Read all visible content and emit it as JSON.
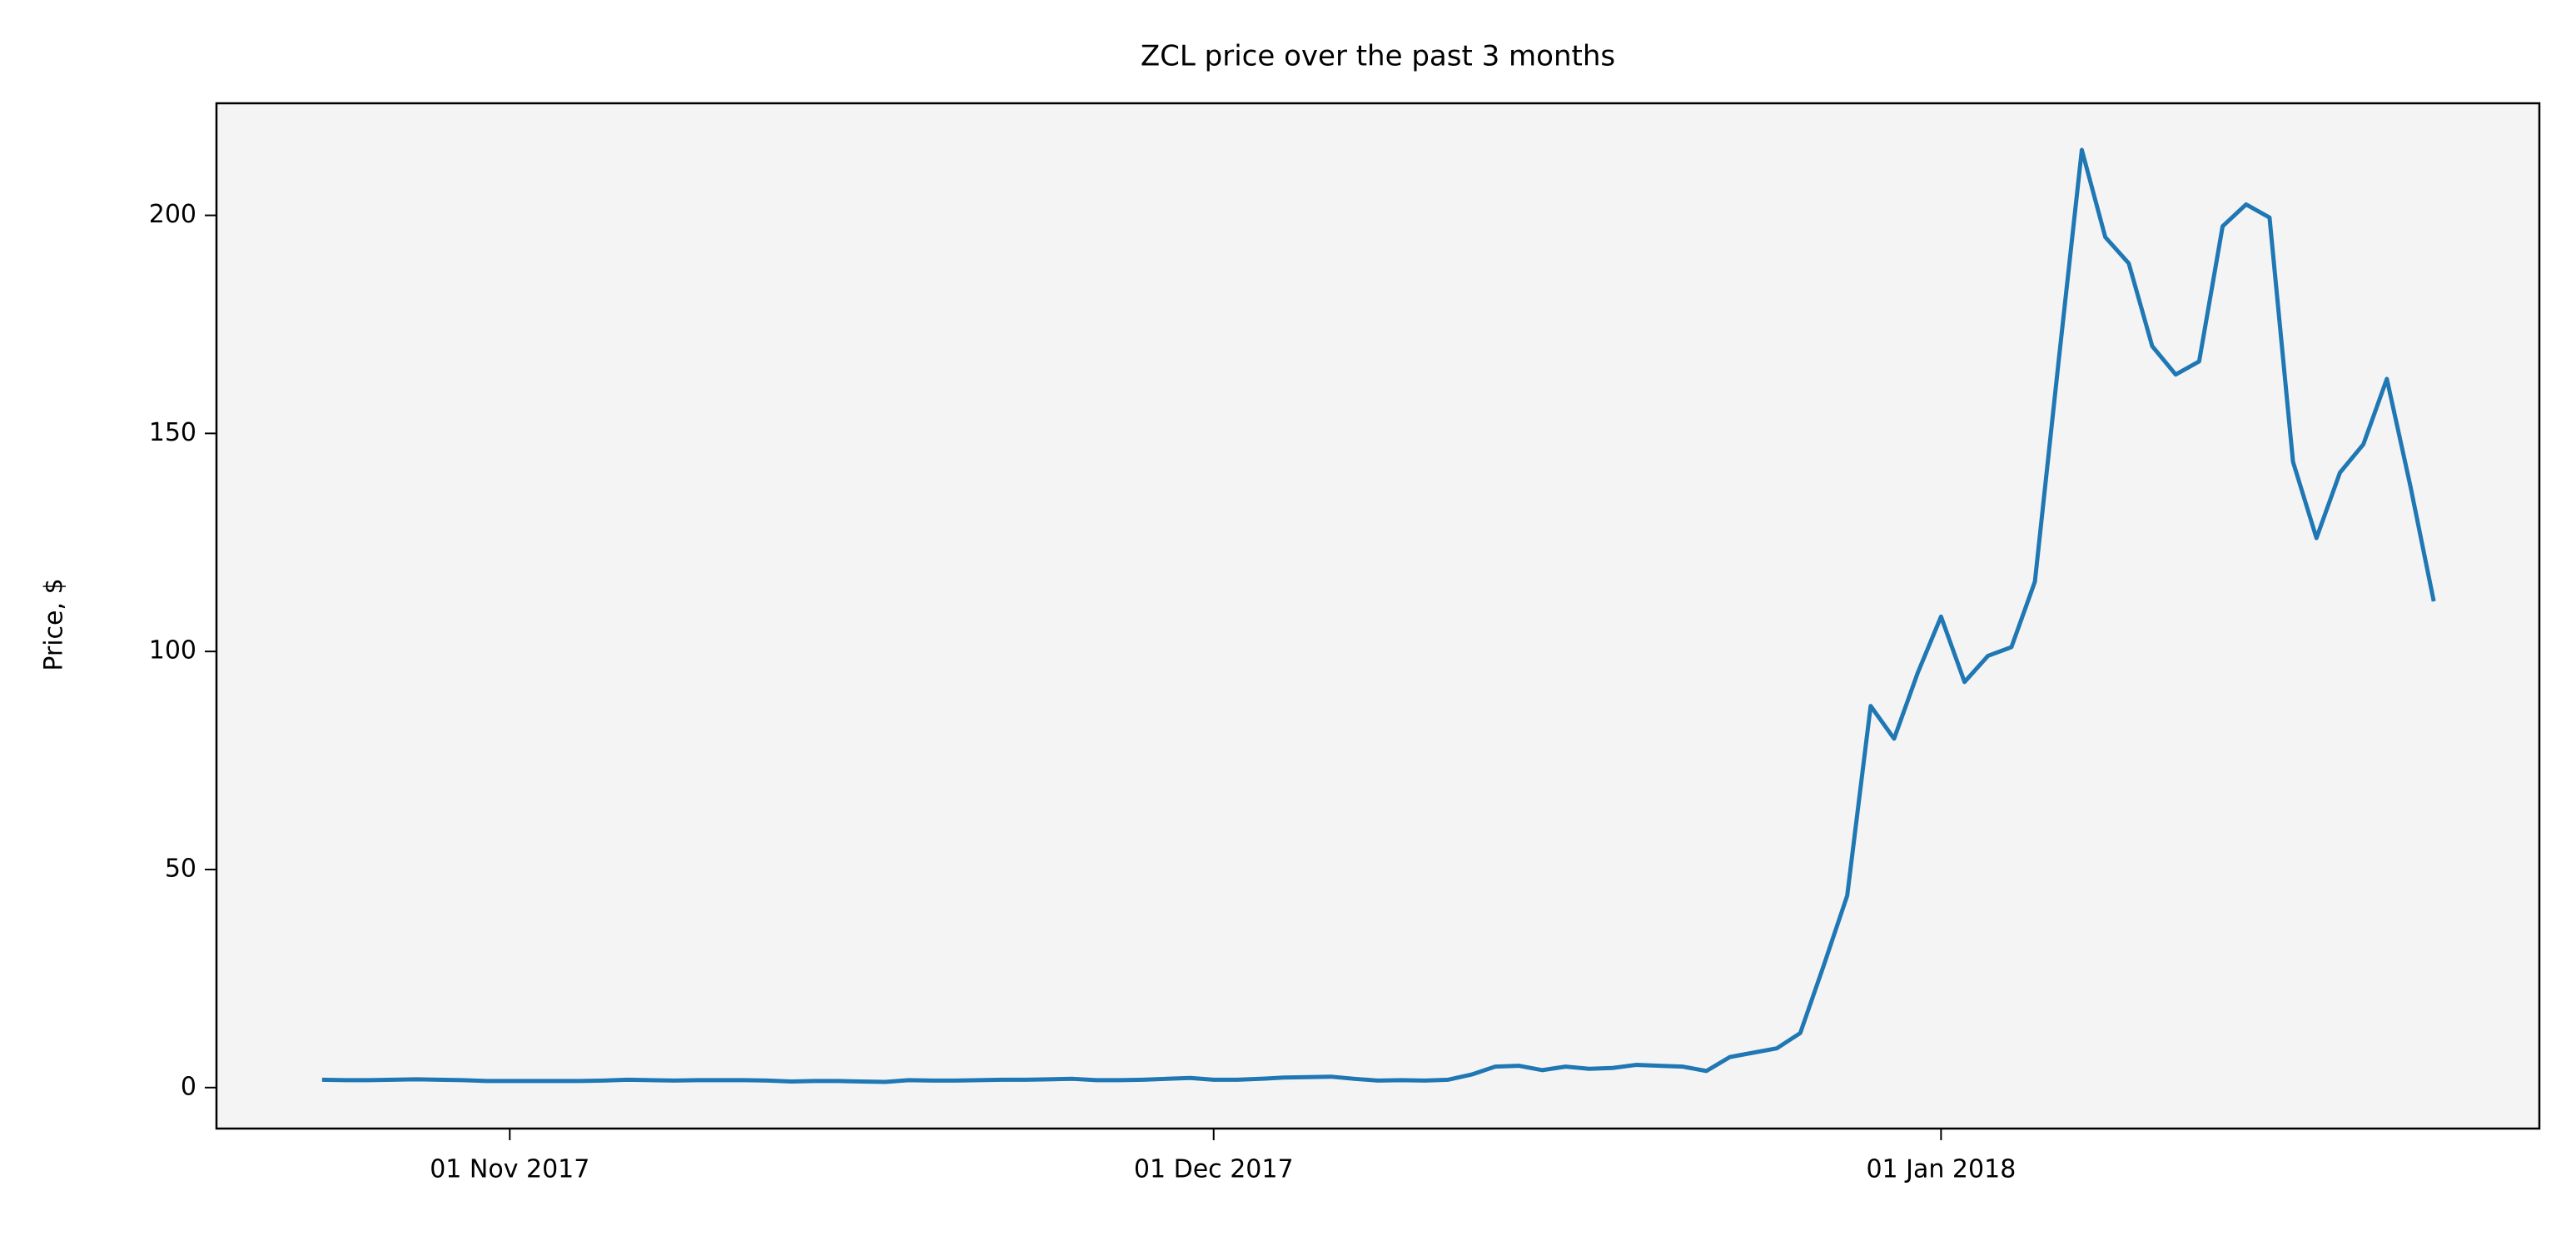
{
  "chart_data": {
    "type": "line",
    "title": "ZCL price over the past 3 months",
    "y_label": "Price, $",
    "x": [
      "2017-10-24",
      "2017-10-25",
      "2017-10-26",
      "2017-10-27",
      "2017-10-28",
      "2017-10-29",
      "2017-10-30",
      "2017-10-31",
      "2017-11-01",
      "2017-11-02",
      "2017-11-03",
      "2017-11-04",
      "2017-11-05",
      "2017-11-06",
      "2017-11-07",
      "2017-11-08",
      "2017-11-09",
      "2017-11-10",
      "2017-11-11",
      "2017-11-12",
      "2017-11-13",
      "2017-11-14",
      "2017-11-15",
      "2017-11-16",
      "2017-11-17",
      "2017-11-18",
      "2017-11-19",
      "2017-11-20",
      "2017-11-21",
      "2017-11-22",
      "2017-11-23",
      "2017-11-24",
      "2017-11-25",
      "2017-11-26",
      "2017-11-27",
      "2017-11-28",
      "2017-11-29",
      "2017-11-30",
      "2017-12-01",
      "2017-12-02",
      "2017-12-03",
      "2017-12-04",
      "2017-12-05",
      "2017-12-06",
      "2017-12-07",
      "2017-12-08",
      "2017-12-09",
      "2017-12-10",
      "2017-12-11",
      "2017-12-12",
      "2017-12-13",
      "2017-12-14",
      "2017-12-15",
      "2017-12-16",
      "2017-12-17",
      "2017-12-18",
      "2017-12-19",
      "2017-12-20",
      "2017-12-21",
      "2017-12-22",
      "2017-12-23",
      "2017-12-24",
      "2017-12-25",
      "2017-12-26",
      "2017-12-27",
      "2017-12-28",
      "2017-12-29",
      "2017-12-30",
      "2017-12-31",
      "2018-01-01",
      "2018-01-02",
      "2018-01-03",
      "2018-01-04",
      "2018-01-05",
      "2018-01-06",
      "2018-01-07",
      "2018-01-08",
      "2018-01-09",
      "2018-01-10",
      "2018-01-11",
      "2018-01-12",
      "2018-01-13",
      "2018-01-14",
      "2018-01-15",
      "2018-01-16",
      "2018-01-17",
      "2018-01-18",
      "2018-01-19",
      "2018-01-20",
      "2018-01-21",
      "2018-01-22"
    ],
    "values": [
      1.8,
      1.7,
      1.7,
      1.8,
      1.9,
      1.8,
      1.7,
      1.5,
      1.5,
      1.5,
      1.5,
      1.5,
      1.6,
      1.8,
      1.7,
      1.6,
      1.7,
      1.7,
      1.7,
      1.6,
      1.4,
      1.5,
      1.5,
      1.4,
      1.3,
      1.7,
      1.6,
      1.6,
      1.7,
      1.8,
      1.8,
      1.9,
      2.0,
      1.7,
      1.7,
      1.8,
      2.0,
      2.2,
      1.8,
      1.8,
      2.0,
      2.3,
      2.4,
      2.5,
      2.0,
      1.6,
      1.7,
      1.6,
      1.8,
      3.0,
      4.8,
      5.0,
      4.0,
      4.8,
      4.3,
      4.5,
      5.2,
      5.0,
      4.8,
      3.8,
      7.0,
      8.0,
      9.0,
      12.5,
      28,
      44,
      87.5,
      80,
      95,
      108,
      93,
      99,
      101,
      116,
      166,
      215,
      195,
      189,
      170,
      163.5,
      166.5,
      197.5,
      202.5,
      199.5,
      143.5,
      126,
      141,
      147.5,
      162.5,
      138,
      111.5
    ],
    "color": "#1f77b4",
    "xlim": [
      "2017-10-19T12:00:00Z",
      "2018-01-26T12:00:00Z"
    ],
    "xticks": [
      {
        "value": "2017-11-01",
        "label": "01 Nov 2017"
      },
      {
        "value": "2017-12-01",
        "label": "01 Dec 2017"
      },
      {
        "value": "2018-01-01",
        "label": "01 Jan 2018"
      }
    ],
    "ylim": [
      -9.4,
      225.7
    ],
    "yticks": [
      0,
      50,
      100,
      150,
      200
    ],
    "grid": false
  }
}
